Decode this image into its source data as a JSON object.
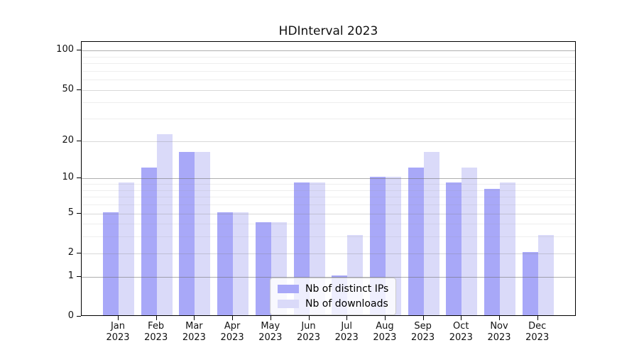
{
  "title": "HDInterval 2023",
  "legend": {
    "items": [
      {
        "label": "Nb of distinct IPs",
        "color": "#a8a8f8"
      },
      {
        "label": "Nb of downloads",
        "color": "#dadaf9"
      }
    ]
  },
  "chart_data": {
    "type": "bar",
    "title": "HDInterval 2023",
    "categories": [
      "Jan 2023",
      "Feb 2023",
      "Mar 2023",
      "Apr 2023",
      "May 2023",
      "Jun 2023",
      "Jul 2023",
      "Aug 2023",
      "Sep 2023",
      "Oct 2023",
      "Nov 2023",
      "Dec 2023"
    ],
    "series": [
      {
        "name": "Nb of distinct IPs",
        "color": "#a8a8f8",
        "values": [
          5,
          12,
          16,
          5,
          4,
          9,
          1,
          10,
          12,
          9,
          8,
          2
        ]
      },
      {
        "name": "Nb of downloads",
        "color": "#dadaf9",
        "values": [
          9,
          22,
          16,
          5,
          4,
          9,
          3,
          10,
          16,
          12,
          9,
          3
        ]
      }
    ],
    "xlabel": "",
    "ylabel": "",
    "yscale": "log1p",
    "yticks": [
      0,
      1,
      2,
      5,
      10,
      20,
      50,
      100
    ],
    "ylim": [
      0,
      116
    ],
    "grid": "horizontal",
    "legend_position": "lower center"
  }
}
